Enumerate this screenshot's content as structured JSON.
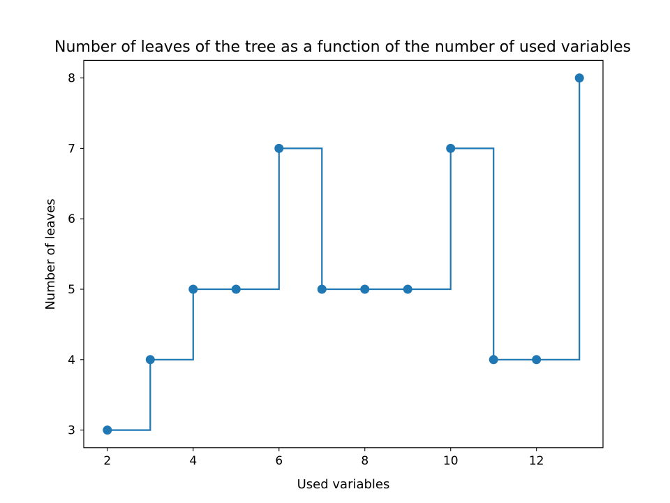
{
  "chart_data": {
    "type": "line",
    "drawstyle": "steps-post",
    "marker": "circle",
    "title": "Number of leaves of the tree as a function of the number of used variables",
    "xlabel": "Used variables",
    "ylabel": "Number of leaves",
    "x": [
      2,
      3,
      4,
      5,
      6,
      7,
      8,
      9,
      10,
      11,
      12,
      13
    ],
    "y": [
      3,
      4,
      5,
      5,
      7,
      5,
      5,
      5,
      7,
      4,
      4,
      8
    ],
    "xticks": [
      2,
      4,
      6,
      8,
      10,
      12
    ],
    "yticks": [
      3,
      4,
      5,
      6,
      7,
      8
    ],
    "xlim": [
      1.45,
      13.55
    ],
    "ylim": [
      2.75,
      8.25
    ],
    "grid": false,
    "legend": false,
    "color": "#1f77b4"
  }
}
